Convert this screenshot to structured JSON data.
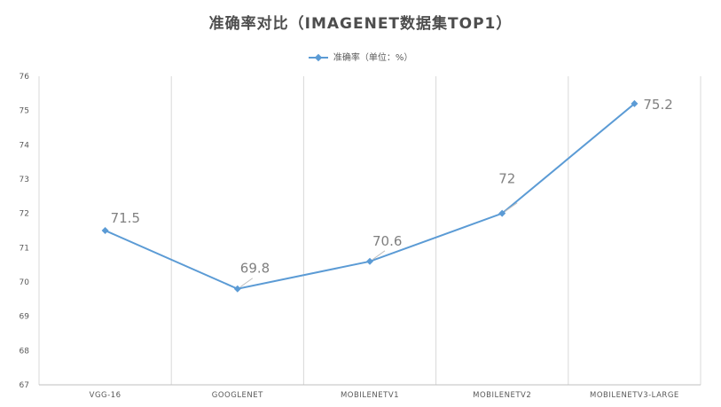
{
  "chart_data": {
    "type": "line",
    "title": "准确率对比（IMAGENET数据集TOP1）",
    "categories": [
      "VGG-16",
      "GOOGLENET",
      "MOBILENETV1",
      "MOBILENETV2",
      "MOBILENETV3-LARGE"
    ],
    "series": [
      {
        "name": "准确率（单位：%）",
        "values": [
          71.5,
          69.8,
          70.6,
          72,
          75.2
        ]
      }
    ],
    "data_labels": [
      "71.5",
      "69.8",
      "70.6",
      "72",
      "75.2"
    ],
    "ylim": [
      67,
      76
    ],
    "yticks": [
      "67",
      "68",
      "69",
      "70",
      "71",
      "72",
      "73",
      "74",
      "75",
      "76"
    ],
    "xlabel": "",
    "ylabel": "",
    "grid": "vertical category separators",
    "legend_position": "top",
    "colors": {
      "series": "#5b9bd5",
      "label": "#808080",
      "grid": "#d9d9d9",
      "axis": "#bfbfbf"
    }
  }
}
